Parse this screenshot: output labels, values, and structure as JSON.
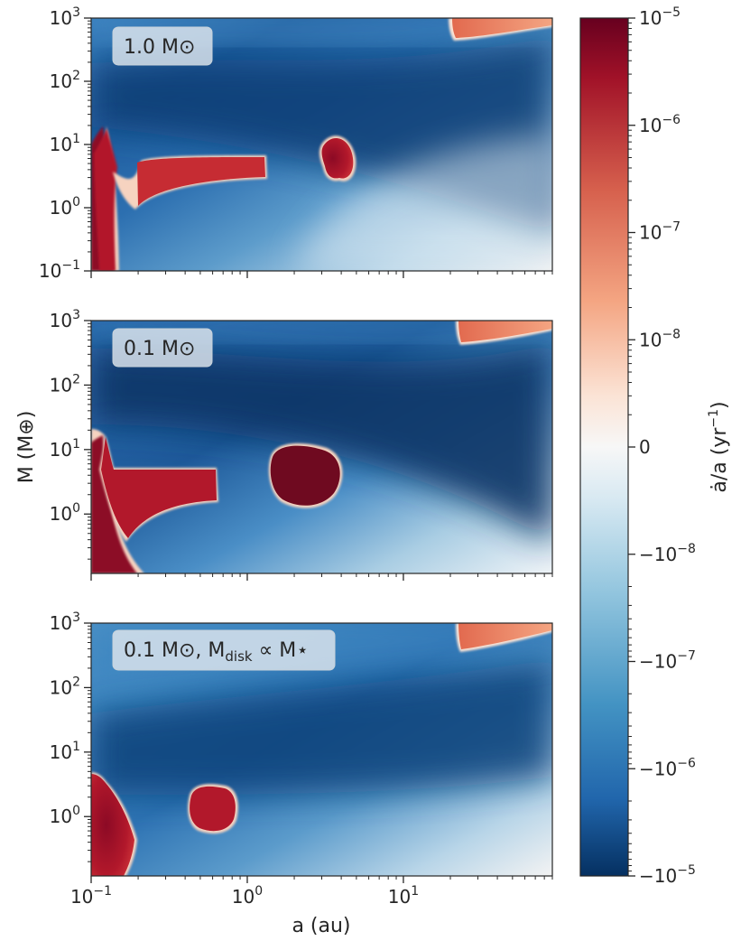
{
  "chart_data": {
    "type": "heatmap",
    "colormap": "RdBu_r (symlog)",
    "shared_xlabel": "a (au)",
    "shared_ylabel": "M (M⊕)",
    "x_scale": "log",
    "xlim": [
      0.1,
      90
    ],
    "x_tick_labels": [
      {
        "value": 0.1,
        "base": "10",
        "exp": "−1"
      },
      {
        "value": 1,
        "base": "10",
        "exp": "0"
      },
      {
        "value": 10,
        "base": "10",
        "exp": "1"
      }
    ],
    "y_scale": "log",
    "panels": [
      {
        "label": "1.0 M⊙",
        "ylim": [
          0.1,
          1000
        ],
        "y_tick_labels": [
          {
            "value": 1000,
            "base": "10",
            "exp": "3"
          },
          {
            "value": 100,
            "base": "10",
            "exp": "2"
          },
          {
            "value": 10,
            "base": "10",
            "exp": "1"
          },
          {
            "value": 1,
            "base": "10",
            "exp": "0"
          },
          {
            "value": 0.1,
            "base": "10",
            "exp": "−1"
          }
        ],
        "outward_regions": [
          {
            "description": "inner region",
            "a_range": [
              0.1,
              0.17
            ],
            "M_range": [
              0.1,
              15
            ]
          },
          {
            "description": "band",
            "a_range": [
              0.17,
              1.3
            ],
            "M_range": [
              2.0,
              6.0
            ]
          },
          {
            "description": "island",
            "a_range": [
              2.9,
              4.8
            ],
            "M_range": [
              2.5,
              15
            ]
          },
          {
            "description": "high-mass corner",
            "a_range": [
              20,
              90
            ],
            "M_range": [
              550,
              1000
            ]
          }
        ]
      },
      {
        "label": "0.1 M⊙",
        "ylim": [
          0.12,
          1000
        ],
        "y_tick_labels": [
          {
            "value": 1000,
            "base": "10",
            "exp": "3"
          },
          {
            "value": 100,
            "base": "10",
            "exp": "2"
          },
          {
            "value": 10,
            "base": "10",
            "exp": "1"
          },
          {
            "value": 1,
            "base": "10",
            "exp": "0"
          }
        ],
        "outward_regions": [
          {
            "description": "inner region",
            "a_range": [
              0.1,
              0.15
            ],
            "M_range": [
              0.12,
              15
            ]
          },
          {
            "description": "band",
            "a_range": [
              0.15,
              0.62
            ],
            "M_range": [
              1.5,
              4.5
            ]
          },
          {
            "description": "island",
            "a_range": [
              1.4,
              4.5
            ],
            "M_range": [
              0.75,
              11
            ]
          },
          {
            "description": "high-mass corner",
            "a_range": [
              22,
              90
            ],
            "M_range": [
              450,
              1000
            ]
          }
        ]
      },
      {
        "label": "0.1 M⊙, Mdisk ∝ M⋆",
        "label_parts": {
          "main": "0.1 M⊙, M",
          "subscript": "disk",
          "rest": " ∝ M⋆"
        },
        "ylim": [
          0.12,
          1000
        ],
        "y_tick_labels": [
          {
            "value": 1000,
            "base": "10",
            "exp": "3"
          },
          {
            "value": 100,
            "base": "10",
            "exp": "2"
          },
          {
            "value": 10,
            "base": "10",
            "exp": "1"
          },
          {
            "value": 1,
            "base": "10",
            "exp": "0"
          }
        ],
        "outward_regions": [
          {
            "description": "inner region",
            "a_range": [
              0.1,
              0.18
            ],
            "M_range": [
              0.12,
              4
            ]
          },
          {
            "description": "island",
            "a_range": [
              0.42,
              0.8
            ],
            "M_range": [
              0.5,
              2.8
            ]
          },
          {
            "description": "high-mass corner",
            "a_range": [
              22,
              90
            ],
            "M_range": [
              450,
              1000
            ]
          }
        ]
      }
    ],
    "colorbar": {
      "label": "ȧ/a (yr⁻¹)",
      "label_parts": {
        "symbol": "ȧ/a",
        "unit_open": " (yr",
        "exp": "−1",
        "unit_close": ")"
      },
      "scale": "symlog",
      "ticks": [
        {
          "base": "10",
          "exp": "−5",
          "sign": ""
        },
        {
          "base": "10",
          "exp": "−6",
          "sign": ""
        },
        {
          "base": "10",
          "exp": "−7",
          "sign": ""
        },
        {
          "base": "10",
          "exp": "−8",
          "sign": ""
        },
        {
          "base": "0",
          "exp": "",
          "sign": ""
        },
        {
          "base": "10",
          "exp": "−8",
          "sign": "−"
        },
        {
          "base": "10",
          "exp": "−7",
          "sign": "−"
        },
        {
          "base": "10",
          "exp": "−6",
          "sign": "−"
        },
        {
          "base": "10",
          "exp": "−5",
          "sign": "−"
        }
      ],
      "colors": {
        "max_positive": "#67001f",
        "positive_mid": "#c2323a",
        "positive_low": "#f4a582",
        "zero": "#f7f7f7",
        "negative_low": "#92c5de",
        "negative_mid": "#3a84bd",
        "max_negative": "#053061"
      }
    }
  }
}
